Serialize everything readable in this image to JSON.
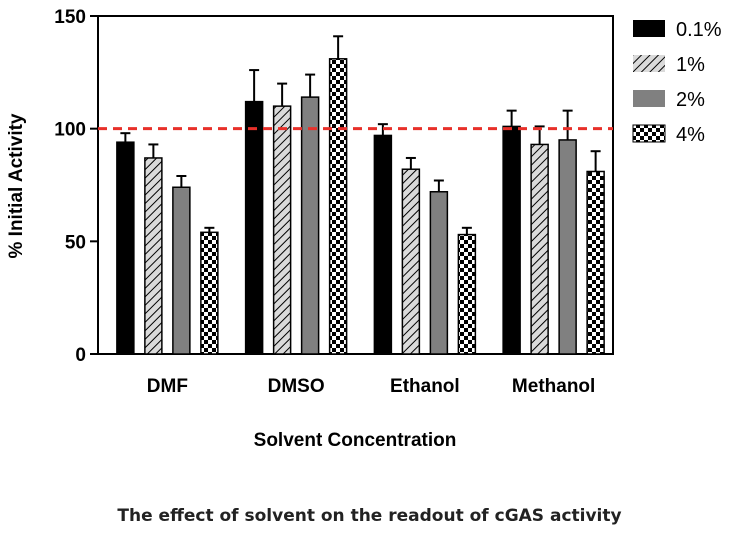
{
  "caption": "The effect of solvent on the readout of cGAS activity",
  "chart_data": {
    "type": "bar",
    "xlabel": "Solvent Concentration",
    "ylabel": "% Initial Activity",
    "ylim": [
      0,
      150
    ],
    "yticks": [
      0,
      50,
      100,
      150
    ],
    "categories": [
      "DMF",
      "DMSO",
      "Ethanol",
      "Methanol"
    ],
    "series": [
      {
        "name": "0.1%",
        "pattern": "solid-black",
        "values": [
          94,
          112,
          97,
          101
        ],
        "errors": [
          4,
          14,
          5,
          7
        ]
      },
      {
        "name": "1%",
        "pattern": "diagonal-hatch",
        "values": [
          87,
          110,
          82,
          93
        ],
        "errors": [
          6,
          10,
          5,
          8
        ]
      },
      {
        "name": "2%",
        "pattern": "solid-gray",
        "values": [
          74,
          114,
          72,
          95
        ],
        "errors": [
          5,
          10,
          5,
          13
        ]
      },
      {
        "name": "4%",
        "pattern": "checkerboard",
        "values": [
          54,
          131,
          53,
          81
        ],
        "errors": [
          2,
          10,
          3,
          9
        ]
      }
    ],
    "reference_line": {
      "value": 100,
      "style": "dashed",
      "color": "#e8302a"
    },
    "legend_position": "right",
    "grid": false,
    "colors": {
      "black": "#000000",
      "gray": "#808080",
      "hatch_bg": "#d9d9d9"
    }
  }
}
